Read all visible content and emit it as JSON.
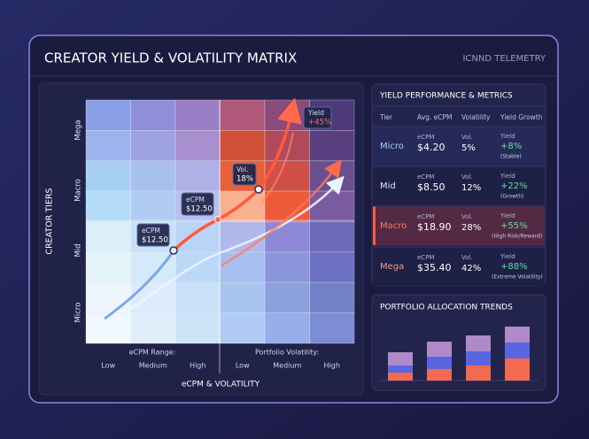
{
  "header": {
    "title": "CREATOR YIELD & VOLATILITY MATRIX",
    "brand": "ICNND TELEMETRY"
  },
  "matrix": {
    "y_axis_title": "CREATOR TIERS",
    "tiers": [
      "Mega",
      "Macro",
      "Mid",
      "Micro"
    ],
    "x_groups": [
      "eCPM Range:",
      "Portfolio Volatility:"
    ],
    "x_ticks": [
      "Low",
      "Medium",
      "High",
      "Low",
      "Medium",
      "High"
    ],
    "x_axis_title": "eCPM & VOLATILITY",
    "cell_colors": [
      [
        "#8aa0e6",
        "#8e8fd8",
        "#9a7fc6",
        "#b0587a",
        "#8a4a7a",
        "#4c3a7a"
      ],
      [
        "#9cb4ee",
        "#9ea2e0",
        "#a890d0",
        "#d0503a",
        "#b04a5a",
        "#5a3f80"
      ],
      [
        "#a8d0f4",
        "#a8c0ee",
        "#b0b0e8",
        "#e8603a",
        "#d05048",
        "#6a4f90"
      ],
      [
        "#b4dcf8",
        "#b0ccf2",
        "#b8c0ee",
        "#f8b090",
        "#ef5a3a",
        "#7a5aa0"
      ],
      [
        "#dceef8",
        "#c8e0f8",
        "#b8d4f6",
        "#b0b8ec",
        "#8c8ad8",
        "#6a6ab8"
      ],
      [
        "#e4f2fa",
        "#d4eafa",
        "#bcd8f8",
        "#a8bef0",
        "#8c96dc",
        "#6c70c0"
      ],
      [
        "#eef6fc",
        "#dcecfa",
        "#c8e0f8",
        "#a8c4f0",
        "#8ca0e0",
        "#7280c8"
      ],
      [
        "#f0f8fd",
        "#e0eefb",
        "#cce4f8",
        "#b0ccf4",
        "#98aeea",
        "#7c8cd6"
      ]
    ],
    "callouts": [
      {
        "label": "eCPM",
        "value": "$12.50"
      },
      {
        "label": "eCPM",
        "value": "$12.50"
      },
      {
        "label": "Vol.",
        "value": "18%"
      },
      {
        "label": "Yield",
        "value": "+45%"
      }
    ]
  },
  "metrics": {
    "title": "YIELD PERFORMANCE & METRICS",
    "columns": [
      "Tier",
      "Avg. eCPM",
      "Volatility",
      "Yield Growth"
    ],
    "rows": [
      {
        "tier": "Micro",
        "ecpm_label": "eCPM",
        "ecpm": "$4.20",
        "vol_label": "Vol.",
        "vol": "5%",
        "yield_label": "Yield",
        "yield": "+8%",
        "note": "(Stable)",
        "color": "#9fd4f5"
      },
      {
        "tier": "Mid",
        "ecpm_label": "eCPM",
        "ecpm": "$8.50",
        "vol_label": "Vol.",
        "vol": "12%",
        "yield_label": "Yield",
        "yield": "+22%",
        "note": "(Growth)",
        "color": "#dfe6ff"
      },
      {
        "tier": "Macro",
        "ecpm_label": "eCPM",
        "ecpm": "$18.90",
        "vol_label": "Vol.",
        "vol": "28%",
        "yield_label": "Yield",
        "yield": "+55%",
        "note": "(High Risk/Reward)",
        "color": "#ff7a5a"
      },
      {
        "tier": "Mega",
        "ecpm_label": "eCPM",
        "ecpm": "$35.40",
        "vol_label": "Vol.",
        "vol": "42%",
        "yield_label": "Yield",
        "yield": "+88%",
        "note": "(Extreme Volatility)",
        "color": "#f29a8a"
      }
    ]
  },
  "allocation": {
    "title": "PORTFOLIO ALLOCATION TRENDS",
    "series": [
      {
        "color": "#f26a50",
        "values": [
          9,
          13,
          17,
          25
        ]
      },
      {
        "color": "#5a66e0",
        "values": [
          8,
          14,
          16,
          18
        ]
      },
      {
        "color": "#b08ac8",
        "values": [
          15,
          17,
          18,
          18
        ]
      }
    ]
  }
}
